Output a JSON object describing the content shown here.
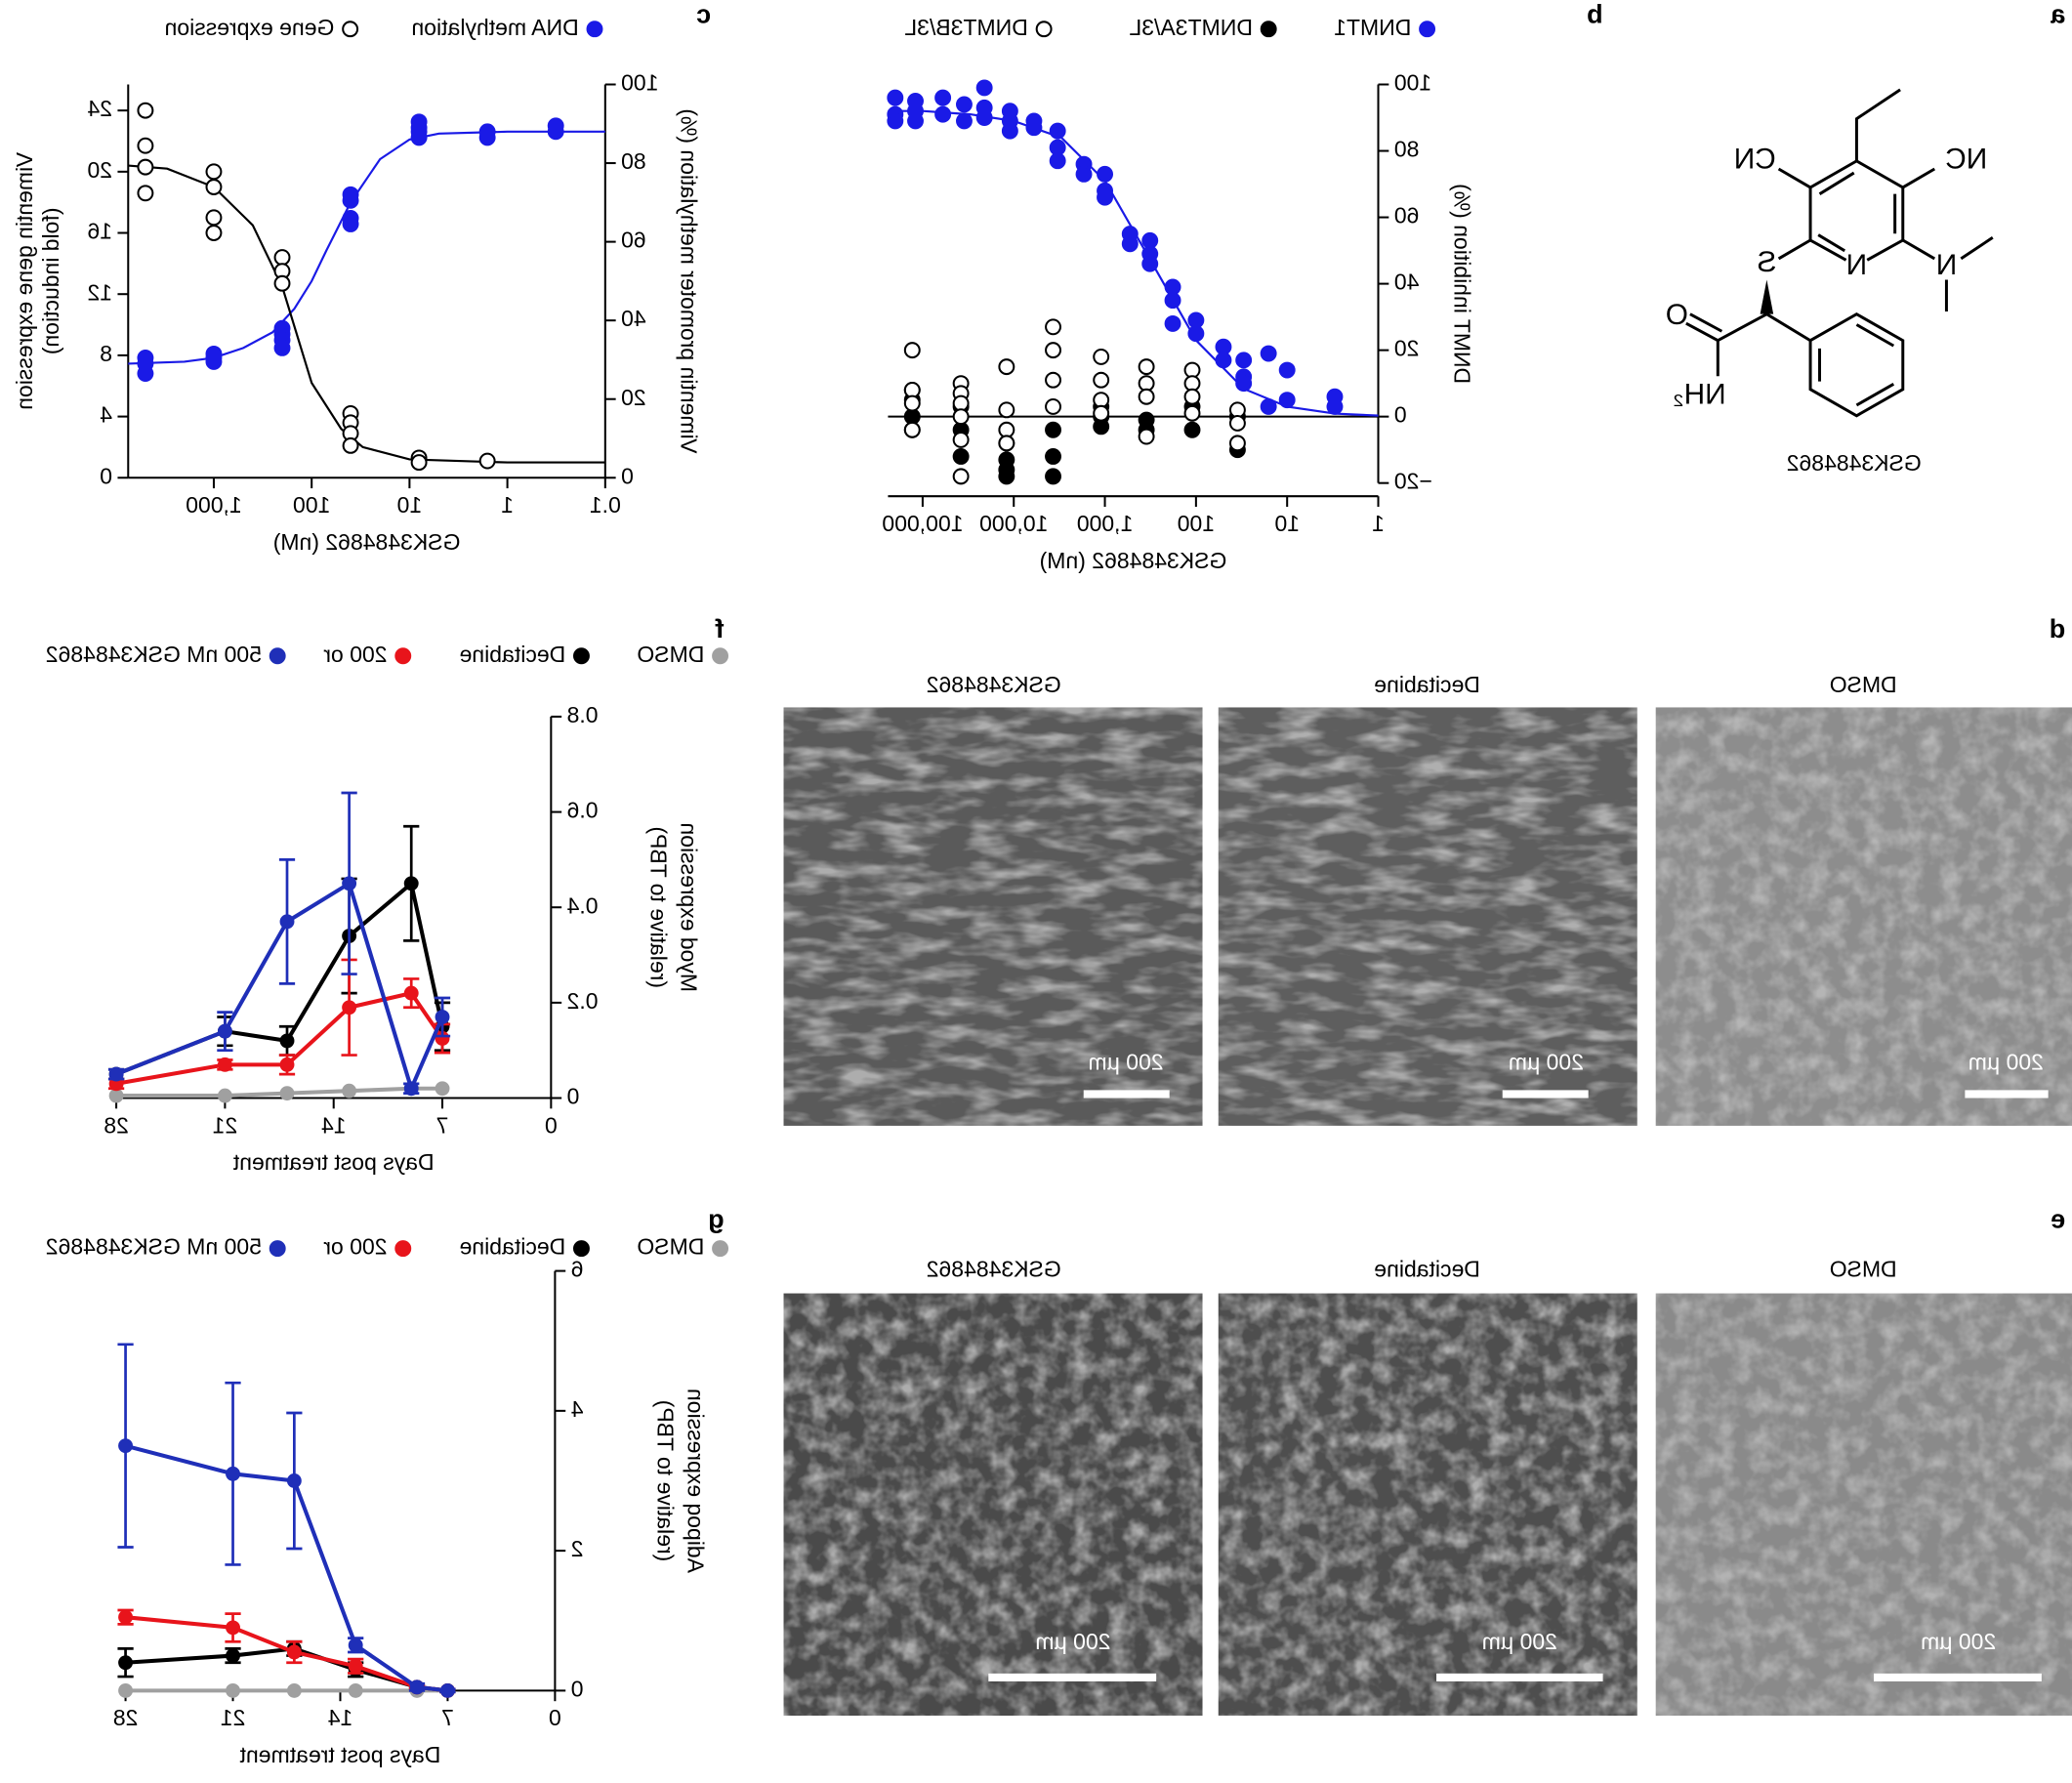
{
  "panel_labels": [
    "a",
    "b",
    "c",
    "d",
    "e",
    "f",
    "g"
  ],
  "structure": {
    "name": "GSK3484862",
    "atoms": [
      "NC",
      "CN",
      "N",
      "N",
      "S",
      "O",
      "NH₂"
    ]
  },
  "micrographs": [
    {
      "titles": [
        "DMSO",
        "Decitabine",
        "GSK3484862"
      ],
      "scale_bar": "200 µm"
    },
    {
      "titles": [
        "DMSO",
        "Decitabine",
        "GSK3484862"
      ],
      "scale_bar": "200 µm"
    }
  ],
  "chart_data": [
    {
      "type": "scatter",
      "xlabel": "GSK3484862 (nM)",
      "ylabel": "DNMT inhibition (%)",
      "xscale": "log",
      "xlim": [
        1,
        240000
      ],
      "xticks": [
        1,
        10,
        100,
        {
          "value": 1000,
          "label": "1,000"
        },
        {
          "value": 10000,
          "label": "10,000"
        },
        {
          "value": 100000,
          "label": "100,000"
        }
      ],
      "ylim": [
        -20,
        100
      ],
      "yticks": [
        {
          "value": -20,
          "label": "−20"
        },
        0,
        20,
        40,
        60,
        80,
        100
      ],
      "zero_line": true,
      "legend": "top",
      "series": [
        {
          "name": "DNMT1",
          "color": "#1a1ae6",
          "marker": "filled",
          "x": [
            200000,
            200000,
            200000,
            120000,
            120000,
            120000,
            60000,
            60000,
            35000,
            35000,
            21000,
            21000,
            21000,
            11000,
            11000,
            11000,
            6000,
            6000,
            3300,
            3300,
            3300,
            1700,
            1700,
            1000,
            1000,
            1000,
            530,
            530,
            320,
            320,
            320,
            180,
            180,
            180,
            100,
            100,
            50,
            50,
            30,
            30,
            30,
            16,
            16,
            10,
            10,
            3,
            3
          ],
          "values": [
            96,
            91,
            89,
            95,
            92,
            89,
            96,
            91,
            94,
            89,
            99,
            93,
            90,
            92,
            89,
            86,
            89,
            87,
            86,
            81,
            77,
            76,
            73,
            73,
            68,
            66,
            55,
            52,
            53,
            49,
            46,
            39,
            35,
            28,
            29,
            25,
            21,
            17,
            17,
            12,
            10,
            19,
            3,
            14,
            5,
            6,
            3
          ],
          "fit": {
            "x": [
              1,
              3,
              10,
              30,
              100,
              300,
              1000,
              3000,
              10000,
              30000,
              100000,
              240000
            ],
            "values": [
              0.3,
              0.9,
              3,
              8.4,
              23,
              46,
              71,
              84,
              89,
              91,
              92,
              92
            ]
          }
        },
        {
          "name": "DNMT3A/3L",
          "color": "#000000",
          "marker": "filled",
          "x": [
            130000,
            130000,
            130000,
            130000,
            38000,
            38000,
            38000,
            12000,
            12000,
            12000,
            12000,
            3700,
            3700,
            3700,
            1100,
            1100,
            1100,
            350,
            350,
            110,
            110,
            35,
            35
          ],
          "values": [
            8,
            5,
            0,
            -4,
            3,
            -4,
            -12,
            -8,
            -13,
            -16,
            -18,
            -4,
            -12,
            -18,
            3,
            0,
            -3,
            -1,
            -4,
            3,
            -4,
            0,
            -10
          ]
        },
        {
          "name": "DNMT3B/3L",
          "color": "#000000",
          "marker": "open",
          "x": [
            130000,
            130000,
            130000,
            130000,
            38000,
            38000,
            38000,
            38000,
            38000,
            38000,
            12000,
            12000,
            12000,
            12000,
            3700,
            3700,
            3700,
            3700,
            1100,
            1100,
            1100,
            1100,
            350,
            350,
            350,
            350,
            110,
            110,
            110,
            110,
            35,
            35,
            35
          ],
          "values": [
            20,
            8,
            4,
            -4,
            10,
            7,
            4,
            0,
            -7,
            -18,
            15,
            2,
            -4,
            -8,
            27,
            20,
            11,
            3,
            18,
            11,
            5,
            1,
            15,
            10,
            6,
            -6,
            14,
            10,
            6,
            1,
            2,
            -2,
            -8
          ]
        }
      ]
    },
    {
      "type": "scatter",
      "xlabel": "GSK3484862 (nM)",
      "ylabel": "Vimentin promoter methylation (%)",
      "y2label": [
        "Vimentin gene expression",
        "(fold induction)"
      ],
      "xscale": "log",
      "xlim": [
        0.1,
        7500
      ],
      "xticks": [
        0.1,
        1,
        10,
        100,
        {
          "value": 1000,
          "label": "1,000"
        }
      ],
      "ylim": [
        0,
        100
      ],
      "yticks": [
        0,
        20,
        40,
        60,
        80,
        100
      ],
      "y2lim": [
        0,
        25.7
      ],
      "y2ticks": [
        0,
        4,
        8,
        12,
        16,
        20,
        24
      ],
      "legend": "top",
      "series": [
        {
          "name": "DNA methylation",
          "color": "#1a1ae6",
          "marker": "filled",
          "x": [
            5000,
            5000,
            5000,
            1000,
            1000,
            1000,
            200,
            200,
            200,
            200,
            40,
            40,
            40,
            40,
            8,
            8,
            8,
            8,
            1.6,
            1.6,
            0.32,
            0.32
          ],
          "values": [
            30.5,
            29,
            26.5,
            31.5,
            30.5,
            29.5,
            38,
            36.5,
            35,
            33,
            72,
            70.5,
            66,
            64.5,
            90.5,
            89,
            88,
            86.5,
            88,
            86.5,
            89.5,
            88
          ],
          "fit": {
            "x": [
              0.1,
              1,
              5,
              10,
              20,
              40,
              70,
              100,
              150,
              250,
              500,
              1000,
              2000,
              7500
            ],
            "values": [
              88,
              88,
              87.5,
              86,
              81,
              70,
              58,
              50,
              43,
              37,
              33,
              30.5,
              29.5,
              29
            ]
          }
        },
        {
          "name": "Gene expression",
          "color": "#000000",
          "marker": "open",
          "axis": "y2",
          "x": [
            5000,
            5000,
            5000,
            5000,
            1000,
            1000,
            1000,
            1000,
            200,
            200,
            200,
            40,
            40,
            40,
            40,
            8,
            8,
            1.6
          ],
          "values": [
            24,
            21.7,
            20.3,
            18.6,
            20,
            19,
            17,
            16,
            14.4,
            13.5,
            12.7,
            4.2,
            3.6,
            2.9,
            2.1,
            1.3,
            1.0,
            1.1
          ],
          "fit": {
            "x": [
              0.1,
              1,
              10,
              30,
              50,
              100,
              200,
              400,
              1000,
              3000,
              7500
            ],
            "values": [
              1,
              1,
              1.2,
              2,
              3.2,
              6.2,
              12.5,
              16.5,
              19,
              20.2,
              20.4
            ]
          }
        }
      ]
    },
    {
      "type": "line",
      "xlabel": "Days post treatment",
      "ylabel": [
        "Myod expression",
        "(relative to TBP)"
      ],
      "x": [
        7,
        9,
        13,
        17,
        21,
        28
      ],
      "xlim": [
        0,
        28
      ],
      "xticks": [
        0,
        7,
        14,
        21,
        28
      ],
      "ylim": [
        0,
        0.8
      ],
      "yticks": [
        0,
        0.2,
        0.4,
        0.6,
        0.8
      ],
      "legend": "top",
      "series": [
        {
          "name": "DMSO",
          "color": "#a0a0a0",
          "values": [
            0.02,
            0.02,
            0.015,
            0.01,
            0.005,
            0.005
          ]
        },
        {
          "name": "Decitabine",
          "color": "#000000",
          "values": [
            0.15,
            0.45,
            0.34,
            0.12,
            0.14,
            0.05
          ],
          "errors": [
            0.05,
            0.12,
            0.12,
            0.03,
            0.03,
            0.01
          ]
        },
        {
          "name": "200 or",
          "color": "#e8141b",
          "values": [
            0.125,
            0.22,
            0.19,
            0.07,
            0.07,
            0.03
          ],
          "errors": [
            0.03,
            0.03,
            0.1,
            0.02,
            0.01,
            0.01
          ]
        },
        {
          "name": "500 nM GSK3484862",
          "color": "#1f2fb8",
          "values": [
            0.17,
            0.02,
            0.45,
            0.37,
            0.14,
            0.05
          ],
          "errors": [
            0.04,
            0.01,
            0.19,
            0.13,
            0.04,
            0.01
          ]
        }
      ]
    },
    {
      "type": "line",
      "xlabel": "Days post treatment",
      "ylabel": [
        "Adipoq expression",
        "(relative to TBP)"
      ],
      "x": [
        7,
        9,
        13,
        17,
        21,
        28
      ],
      "xlim": [
        0,
        28
      ],
      "xticks": [
        0,
        7,
        14,
        21,
        28
      ],
      "ylim": [
        0,
        6
      ],
      "yticks": [
        0,
        2,
        4,
        6
      ],
      "legend": "top",
      "series": [
        {
          "name": "DMSO",
          "color": "#a0a0a0",
          "values": [
            0,
            0,
            0,
            0,
            0,
            0
          ]
        },
        {
          "name": "Decitabine",
          "color": "#000000",
          "values": [
            0,
            0.05,
            0.3,
            0.6,
            0.5,
            0.4
          ],
          "errors": [
            0.02,
            0.02,
            0.1,
            0.1,
            0.1,
            0.2
          ]
        },
        {
          "name": "200 or",
          "color": "#e8141b",
          "values": [
            0,
            0.05,
            0.35,
            0.55,
            0.9,
            1.05
          ],
          "errors": [
            0.02,
            0.02,
            0.1,
            0.15,
            0.2,
            0.1
          ]
        },
        {
          "name": "500 nM GSK3484862",
          "color": "#1f2fb8",
          "values": [
            0,
            0.05,
            0.65,
            3.0,
            3.1,
            3.5
          ],
          "errors": [
            0.02,
            0.05,
            0.1,
            0.97,
            1.3,
            1.45
          ]
        }
      ]
    }
  ]
}
